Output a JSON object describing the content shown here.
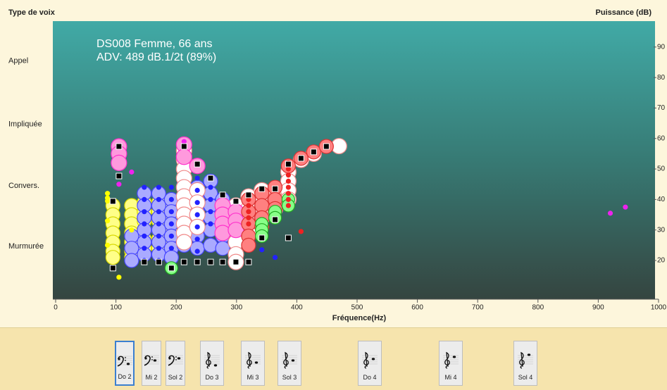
{
  "chart_data": {
    "type": "scatter",
    "annotations": [
      "DS008 Femme, 66 ans",
      "ADV:  489 dB.1/2t (89%)"
    ],
    "x_label": "Fréquence(Hz)",
    "y_label": "Puissance (dB)",
    "voice_label": "Type de voix",
    "xlim": [
      0,
      1000
    ],
    "xticks": [
      0,
      100,
      200,
      300,
      400,
      500,
      600,
      700,
      800,
      900,
      1000
    ],
    "ylim": [
      7.3,
      98.5
    ],
    "yticks": [
      20,
      30,
      40,
      50,
      60,
      70,
      80,
      90
    ],
    "voice_ticks": [
      {
        "value": 85.4,
        "label": "Appel"
      },
      {
        "value": 64.6,
        "label": "Impliquée"
      },
      {
        "value": 44.5,
        "label": "Convers."
      },
      {
        "value": 24.6,
        "label": "Murmurée"
      }
    ],
    "series": [
      {
        "color": "#ffff88",
        "edge_color": "#d8d800",
        "marker": "circle",
        "marker_size": 10,
        "x": [
          95,
          95,
          95,
          95,
          95,
          95,
          95,
          126,
          126,
          126,
          126,
          126,
          126,
          126,
          147,
          147,
          147,
          147,
          147,
          147,
          171,
          171,
          171,
          171,
          171,
          171,
          192,
          192,
          192,
          192,
          192
        ],
        "values": [
          38,
          35,
          32,
          29,
          26,
          23,
          21,
          38,
          35,
          32,
          29,
          26,
          23,
          21,
          39,
          36,
          33,
          30,
          27,
          24,
          39,
          36,
          33,
          30,
          27,
          24,
          38,
          35,
          32,
          29,
          26
        ]
      },
      {
        "color": "#aaaaff",
        "edge_color": "#4646ff",
        "marker": "circle",
        "marker_size": 10,
        "x": [
          126,
          126,
          126,
          147,
          147,
          147,
          147,
          147,
          147,
          171,
          171,
          171,
          171,
          171,
          171,
          192,
          192,
          192,
          192,
          192,
          192,
          213,
          213,
          213,
          213,
          213,
          213,
          235,
          235,
          235,
          235,
          235,
          235,
          257,
          257,
          257,
          257,
          257,
          257,
          277,
          277,
          277,
          277,
          277
        ],
        "values": [
          28,
          24,
          20,
          42,
          38,
          34,
          30,
          26,
          22,
          42,
          38,
          34,
          30,
          26,
          22,
          40,
          36,
          32,
          28,
          24,
          21,
          45,
          41,
          37,
          33,
          29,
          25,
          44,
          40,
          36,
          32,
          28,
          24,
          46,
          42,
          38,
          34,
          30,
          25,
          40,
          36,
          32,
          28,
          24
        ]
      },
      {
        "color": "#ffffff",
        "edge_color": "#f08a8a",
        "marker": "circle",
        "marker_size": 11,
        "x": [
          213,
          213,
          213,
          213,
          213,
          213,
          213,
          213,
          213,
          213,
          213,
          235,
          235,
          235,
          235,
          299,
          299,
          299,
          299,
          299,
          299,
          320,
          320,
          320,
          320,
          342,
          342,
          342,
          342,
          364,
          364,
          364,
          386,
          386,
          386,
          386,
          407,
          428,
          470
        ],
        "values": [
          56,
          53,
          50,
          47,
          44,
          41,
          38,
          35,
          32,
          29,
          26,
          43,
          39,
          35,
          31,
          38,
          34,
          30,
          26,
          22,
          19.5,
          41,
          37,
          33,
          29,
          43,
          40,
          37,
          34,
          43,
          40,
          37,
          49,
          46,
          43,
          40,
          53,
          55,
          57.5
        ]
      },
      {
        "color": "#ff99dd",
        "edge_color": "#ff33cc",
        "marker": "circle",
        "marker_size": 11,
        "x": [
          105,
          105,
          105,
          213,
          213,
          235,
          277,
          277,
          277,
          277,
          299,
          299,
          299
        ],
        "values": [
          57.4,
          55,
          52,
          58,
          54,
          51,
          38,
          35,
          32,
          29,
          36,
          33,
          30
        ]
      },
      {
        "color": "#ff8080",
        "edge_color": "#dd3333",
        "marker": "circle",
        "marker_size": 10,
        "x": [
          320,
          320,
          320,
          320,
          320,
          342,
          342,
          342,
          342,
          364,
          364,
          364,
          386,
          407,
          428,
          449
        ],
        "values": [
          40,
          36,
          32,
          28,
          25,
          42,
          38,
          34,
          31,
          44,
          40,
          37,
          51,
          53.5,
          55.6,
          57.4
        ]
      },
      {
        "color": "#88ff88",
        "edge_color": "#22aa22",
        "marker": "circle",
        "marker_size": 9,
        "x": [
          192,
          342,
          342,
          342,
          364,
          364,
          386,
          386
        ],
        "values": [
          17.5,
          32,
          30,
          28,
          36,
          34,
          40,
          38
        ]
      },
      {
        "color": "#2222ff",
        "edge_color": "#2222ff",
        "marker": "circle",
        "marker_size": 3,
        "x": [
          147,
          147,
          147,
          147,
          147,
          147,
          147,
          171,
          171,
          171,
          171,
          171,
          171,
          171,
          192,
          192,
          192,
          192,
          192,
          192,
          235,
          235,
          235,
          235,
          235,
          235,
          235,
          257,
          257,
          257,
          257,
          342,
          364
        ],
        "values": [
          44,
          40,
          36,
          32,
          28,
          24,
          20,
          44,
          40,
          36,
          32,
          28,
          24,
          20,
          44,
          40,
          36,
          32,
          28,
          24,
          47,
          43,
          39,
          35,
          31,
          27,
          23,
          44,
          40,
          36,
          32,
          23.5,
          21
        ]
      },
      {
        "color": "#ffff00",
        "edge_color": "#ffff00",
        "marker": "circle",
        "marker_size": 3,
        "x": [
          86,
          86,
          86,
          86,
          86,
          105,
          126
        ],
        "values": [
          42,
          40.5,
          39.5,
          33,
          25,
          14.5,
          30
        ]
      },
      {
        "color": "#ee2222",
        "edge_color": "#ee2222",
        "marker": "circle",
        "marker_size": 3,
        "x": [
          386,
          386,
          386,
          386,
          386,
          386,
          386,
          386,
          320,
          320,
          320,
          320,
          320,
          407
        ],
        "values": [
          52,
          50,
          48,
          46,
          44,
          42,
          40,
          38,
          40,
          38,
          36,
          34,
          32,
          29.5
        ]
      },
      {
        "color": "#ee22ee",
        "edge_color": "#ee22ee",
        "marker": "circle",
        "marker_size": 3,
        "x": [
          920,
          945,
          126,
          105,
          213
        ],
        "values": [
          35.5,
          37.5,
          49,
          45,
          59
        ]
      },
      {
        "color": "#000000",
        "edge_color": "#ffffff",
        "marker": "square",
        "marker_size": 8,
        "x": [
          105,
          105,
          95,
          95,
          147,
          171,
          192,
          213,
          213,
          235,
          257,
          277,
          299,
          320,
          342,
          364,
          386,
          407,
          428,
          449,
          235,
          257,
          277,
          320,
          342,
          364,
          386,
          299
        ],
        "values": [
          57.4,
          47.7,
          39.4,
          17.5,
          19.5,
          19.5,
          17.5,
          19.5,
          57.4,
          51.6,
          47,
          41.5,
          39.4,
          41.5,
          43.5,
          43.5,
          51.6,
          53.5,
          55.6,
          57.4,
          19.5,
          19.5,
          19.5,
          19.5,
          27.4,
          33.4,
          27.4,
          19.5
        ]
      }
    ]
  },
  "notes": [
    "Do 2",
    "Mi 2",
    "Sol 2",
    "Do 3",
    "Mi 3",
    "Sol 3",
    "Do 4",
    "Mi 4",
    "Sol 4"
  ]
}
